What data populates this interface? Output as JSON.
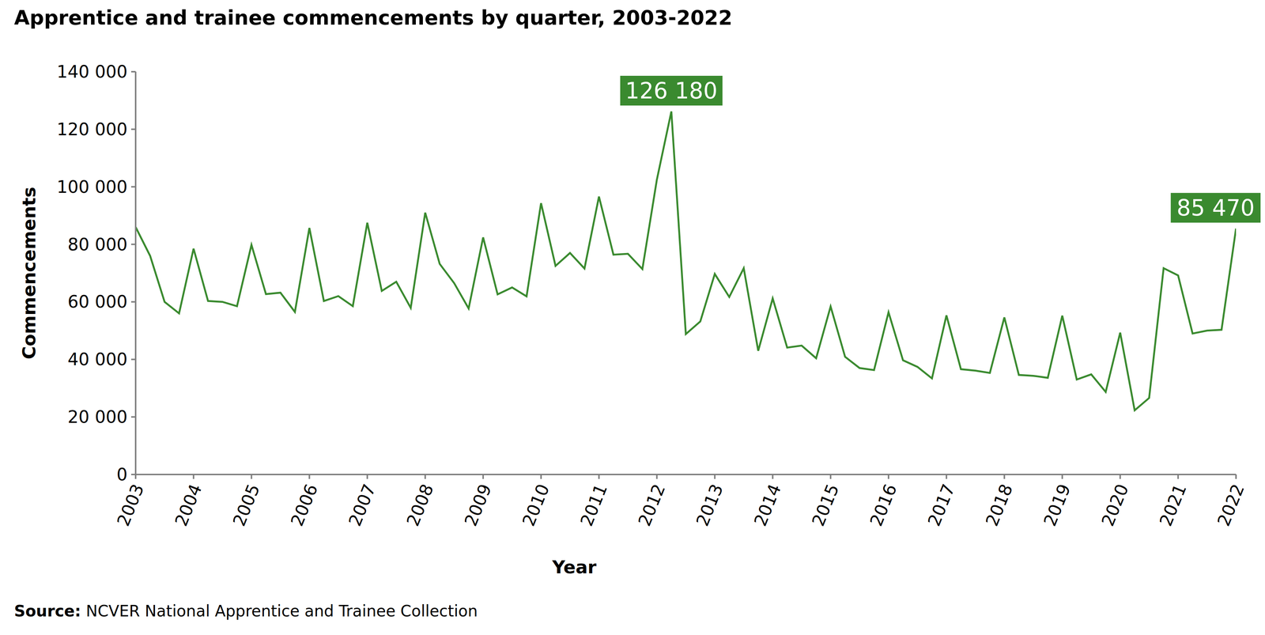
{
  "chart_data": {
    "type": "line",
    "title": "Apprentice and trainee commencements by quarter, 2003-2022",
    "x_label": "Year",
    "y_label": "Commencements",
    "source_label": "Source:",
    "source": "NCVER National Apprentice and Trainee Collection",
    "color": "#3a8a2f",
    "grid": false,
    "x": [
      2003,
      2003.25,
      2003.5,
      2003.75,
      2004,
      2004.25,
      2004.5,
      2004.75,
      2005,
      2005.25,
      2005.5,
      2005.75,
      2006,
      2006.25,
      2006.5,
      2006.75,
      2007,
      2007.25,
      2007.5,
      2007.75,
      2008,
      2008.25,
      2008.5,
      2008.75,
      2009,
      2009.25,
      2009.5,
      2009.75,
      2010,
      2010.25,
      2010.5,
      2010.75,
      2011,
      2011.25,
      2011.5,
      2011.75,
      2012,
      2012.25,
      2012.5,
      2012.75,
      2013,
      2013.25,
      2013.5,
      2013.75,
      2014,
      2014.25,
      2014.5,
      2014.75,
      2015,
      2015.25,
      2015.5,
      2015.75,
      2016,
      2016.25,
      2016.5,
      2016.75,
      2017,
      2017.25,
      2017.5,
      2017.75,
      2018,
      2018.25,
      2018.5,
      2018.75,
      2019,
      2019.25,
      2019.5,
      2019.75,
      2020,
      2020.25,
      2020.5,
      2020.75,
      2021,
      2021.25,
      2021.5,
      2021.75,
      2022
    ],
    "values": [
      86000,
      76000,
      60000,
      56000,
      78500,
      60300,
      60000,
      58500,
      79800,
      62700,
      63200,
      56500,
      85700,
      60300,
      62000,
      58500,
      87500,
      63800,
      67000,
      57900,
      91000,
      73200,
      66500,
      57700,
      82400,
      62600,
      65000,
      61900,
      94300,
      72500,
      77000,
      71600,
      96600,
      76400,
      76700,
      71400,
      102500,
      126180,
      48800,
      53200,
      69700,
      61700,
      71700,
      43000,
      61200,
      44100,
      44800,
      40400,
      58400,
      40900,
      37000,
      36300,
      56400,
      39700,
      37400,
      33400,
      55300,
      36600,
      36100,
      35300,
      54600,
      34600,
      34300,
      33600,
      55200,
      33000,
      34800,
      28700,
      49300,
      22300,
      26600,
      71700,
      69200,
      49000,
      50000,
      50300,
      85470
    ],
    "xlim": [
      2003,
      2022
    ],
    "xticks": [
      2003,
      2004,
      2005,
      2006,
      2007,
      2008,
      2009,
      2010,
      2011,
      2012,
      2013,
      2014,
      2015,
      2016,
      2017,
      2018,
      2019,
      2020,
      2021,
      2022
    ],
    "ylim": [
      0,
      140000
    ],
    "yticks": [
      0,
      {
        "value": 20000,
        "label": "20 000"
      },
      {
        "value": 40000,
        "label": "40 000"
      },
      {
        "value": 60000,
        "label": "60 000"
      },
      {
        "value": 80000,
        "label": "80 000"
      },
      {
        "value": 100000,
        "label": "100 000"
      },
      {
        "value": 120000,
        "label": "120 000"
      },
      {
        "value": 140000,
        "label": "140 000"
      }
    ],
    "annotations": [
      {
        "x": 2012.25,
        "y": 126180,
        "label": "126 180"
      },
      {
        "x": 2022,
        "y": 85470,
        "label": "85 470"
      }
    ]
  }
}
